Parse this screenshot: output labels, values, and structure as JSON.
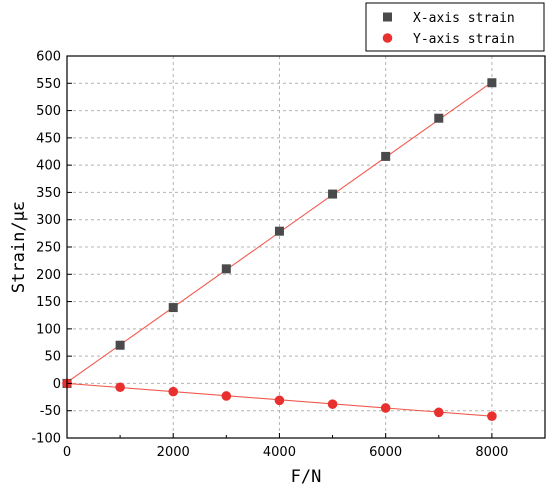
{
  "chart_data": {
    "type": "scatter",
    "xlabel": "F/N",
    "ylabel": "Strain/με",
    "xlim": [
      0,
      9000
    ],
    "ylim": [
      -100,
      600
    ],
    "xticks": [
      0,
      2000,
      4000,
      6000,
      8000
    ],
    "yticks": [
      -100,
      -50,
      0,
      50,
      100,
      150,
      200,
      250,
      300,
      350,
      400,
      450,
      500,
      550,
      600
    ],
    "grid": true,
    "legend_position": "top-right",
    "fit_line_color": "#f05a50",
    "series": [
      {
        "name": "X-axis strain",
        "marker": "square",
        "color": "#4a4a4a",
        "x": [
          0,
          1000,
          2000,
          3000,
          4000,
          5000,
          6000,
          7000,
          8000
        ],
        "y": [
          0,
          70,
          139,
          210,
          279,
          347,
          416,
          486,
          551
        ],
        "fit": [
          [
            0,
            2
          ],
          [
            8000,
            552
          ]
        ]
      },
      {
        "name": "Y-axis strain",
        "marker": "circle",
        "color": "#e8312f",
        "x": [
          0,
          1000,
          2000,
          3000,
          4000,
          5000,
          6000,
          7000,
          8000
        ],
        "y": [
          0,
          -7,
          -15,
          -23,
          -31,
          -38,
          -45,
          -53,
          -60
        ],
        "fit": [
          [
            0,
            0
          ],
          [
            8000,
            -60
          ]
        ]
      }
    ]
  }
}
